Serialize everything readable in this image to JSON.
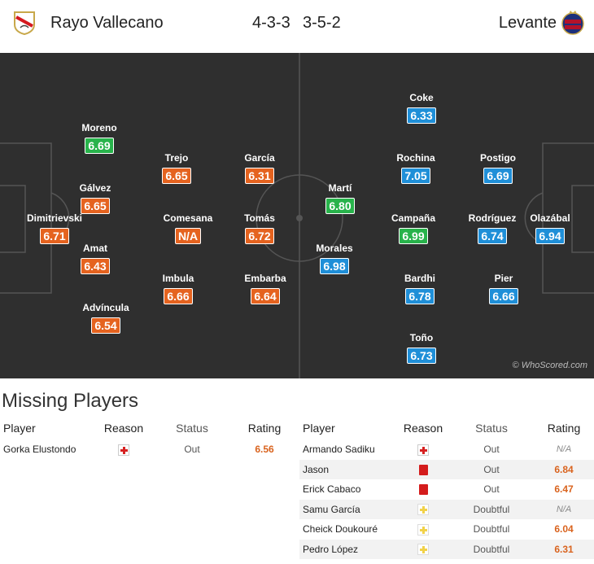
{
  "header": {
    "home_team": "Rayo Vallecano",
    "away_team": "Levante",
    "home_formation": "4-3-3",
    "away_formation": "3-5-2"
  },
  "colors": {
    "pitch": "#2f2f2f",
    "rating_green": "#28b34b",
    "rating_orange": "#e5631f",
    "rating_blue": "#1f8fd8"
  },
  "home_players": [
    {
      "name": "Dimitrievski",
      "rating": "6.71",
      "color": "orange"
    },
    {
      "name": "Moreno",
      "rating": "6.69",
      "color": "green"
    },
    {
      "name": "Gálvez",
      "rating": "6.65",
      "color": "orange"
    },
    {
      "name": "Amat",
      "rating": "6.43",
      "color": "orange"
    },
    {
      "name": "Advíncula",
      "rating": "6.54",
      "color": "orange"
    },
    {
      "name": "Trejo",
      "rating": "6.65",
      "color": "orange"
    },
    {
      "name": "Comesana",
      "rating": "N/A",
      "color": "orange"
    },
    {
      "name": "Imbula",
      "rating": "6.66",
      "color": "orange"
    },
    {
      "name": "García",
      "rating": "6.31",
      "color": "orange"
    },
    {
      "name": "Tomás",
      "rating": "6.72",
      "color": "orange"
    },
    {
      "name": "Embarba",
      "rating": "6.64",
      "color": "orange"
    }
  ],
  "away_players": [
    {
      "name": "Martí",
      "rating": "6.80",
      "color": "green"
    },
    {
      "name": "Morales",
      "rating": "6.98",
      "color": "blue"
    },
    {
      "name": "Coke",
      "rating": "6.33",
      "color": "blue"
    },
    {
      "name": "Rochina",
      "rating": "7.05",
      "color": "blue"
    },
    {
      "name": "Campaña",
      "rating": "6.99",
      "color": "green"
    },
    {
      "name": "Bardhi",
      "rating": "6.78",
      "color": "blue"
    },
    {
      "name": "Toño",
      "rating": "6.73",
      "color": "blue"
    },
    {
      "name": "Postigo",
      "rating": "6.69",
      "color": "blue"
    },
    {
      "name": "Rodríguez",
      "rating": "6.74",
      "color": "blue"
    },
    {
      "name": "Pier",
      "rating": "6.66",
      "color": "blue"
    },
    {
      "name": "Olazábal",
      "rating": "6.94",
      "color": "blue"
    }
  ],
  "credit": "© WhoScored.com",
  "missing": {
    "title": "Missing Players",
    "headers": {
      "player": "Player",
      "reason": "Reason",
      "status": "Status",
      "rating": "Rating"
    },
    "home": [
      {
        "player": "Gorka Elustondo",
        "reason": "injury",
        "status": "Out",
        "rating": "6.56",
        "rating_color": "#d9631e"
      }
    ],
    "away": [
      {
        "player": "Armando Sadiku",
        "reason": "injury",
        "status": "Out",
        "rating": "N/A",
        "rating_color": "#888888"
      },
      {
        "player": "Jason",
        "reason": "red-card",
        "status": "Out",
        "rating": "6.84",
        "rating_color": "#d9631e"
      },
      {
        "player": "Erick Cabaco",
        "reason": "red-card",
        "status": "Out",
        "rating": "6.47",
        "rating_color": "#d9631e"
      },
      {
        "player": "Samu García",
        "reason": "doubtful",
        "status": "Doubtful",
        "rating": "N/A",
        "rating_color": "#888888"
      },
      {
        "player": "Cheick Doukouré",
        "reason": "doubtful",
        "status": "Doubtful",
        "rating": "6.04",
        "rating_color": "#d9631e"
      },
      {
        "player": "Pedro López",
        "reason": "doubtful",
        "status": "Doubtful",
        "rating": "6.31",
        "rating_color": "#d9631e"
      }
    ]
  }
}
